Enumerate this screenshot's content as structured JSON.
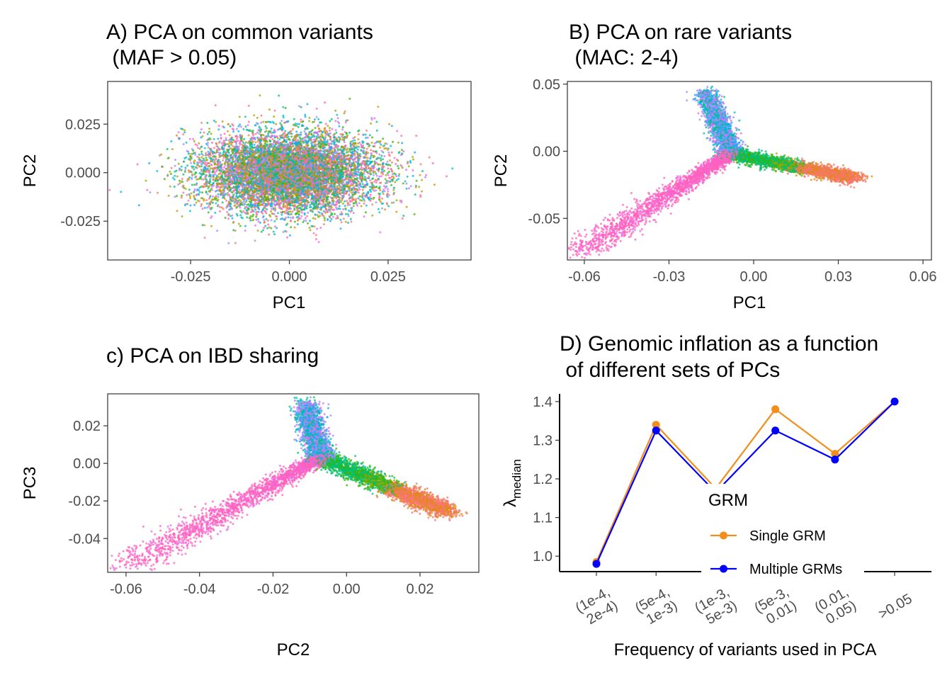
{
  "colors": {
    "single_grm": "#f28e1c",
    "multiple_grms": "#0000ff",
    "panel_border": "#333333",
    "tick_text": "#4d4d4d",
    "population_palette": [
      "#f8766d",
      "#d89000",
      "#a3a500",
      "#39b600",
      "#00bf7d",
      "#00bfc4",
      "#00b0f6",
      "#9590ff",
      "#e76bf3",
      "#ff62bc"
    ]
  },
  "chart_data": [
    {
      "panel": "A",
      "type": "scatter",
      "title_line1": "A) PCA on common variants",
      "title_line2": " (MAF > 0.05)",
      "xlabel": "PC1",
      "ylabel": "PC2",
      "xlim": [
        -0.046,
        0.046
      ],
      "ylim": [
        -0.045,
        0.047
      ],
      "xticks": [
        -0.025,
        0,
        0.025
      ],
      "xtick_labels": [
        "-0.025",
        "0.000",
        "0.025"
      ],
      "yticks": [
        -0.025,
        0,
        0.025
      ],
      "ytick_labels": [
        "-0.025",
        "0.000",
        "0.025"
      ],
      "point_count": 9000,
      "distribution": "isotropic cloud centred at (0, 0), sd ~0.011 (PC1) and ~0.010 (PC2)"
    },
    {
      "panel": "B",
      "type": "scatter",
      "title_line1": "B) PCA on rare variants",
      "title_line2": " (MAC: 2-4)",
      "xlabel": "PC1",
      "ylabel": "PC2",
      "xlim": [
        -0.066,
        0.063
      ],
      "ylim": [
        -0.081,
        0.052
      ],
      "xticks": [
        -0.06,
        -0.03,
        0,
        0.03,
        0.06
      ],
      "xtick_labels": [
        "-0.06",
        "-0.03",
        "0.00",
        "0.03",
        "0.06"
      ],
      "yticks": [
        -0.05,
        0,
        0.05
      ],
      "ytick_labels": [
        "-0.05",
        "0.00",
        "0.05"
      ],
      "point_count": 7000,
      "distribution": "three arms from (-0.008, -0.003): lower-left to (-0.06, -0.075), right to (0.035, -0.02), upward to (-0.018, 0.048)"
    },
    {
      "panel": "C",
      "type": "scatter",
      "title_line1": "c) PCA on IBD sharing",
      "title_line2": "",
      "xlabel": "PC2",
      "ylabel": "PC3",
      "xlim": [
        -0.065,
        0.036
      ],
      "ylim": [
        -0.058,
        0.037
      ],
      "xticks": [
        -0.06,
        -0.04,
        -0.02,
        0,
        0.02
      ],
      "xtick_labels": [
        "-0.06",
        "-0.04",
        "-0.02",
        "0.00",
        "0.02"
      ],
      "yticks": [
        -0.04,
        -0.02,
        0,
        0.02
      ],
      "ytick_labels": [
        "-0.04",
        "-0.02",
        "0.00",
        "0.02"
      ],
      "point_count": 7000,
      "distribution": "three arms from (-0.008, 0.003): lower-left to (-0.06, -0.055), right to (0.032, -0.032), upward to (-0.012, 0.033)"
    },
    {
      "panel": "D",
      "type": "line",
      "title_line1": "D) Genomic inflation as a function",
      "title_line2": " of different sets of PCs",
      "xlabel": "Frequency of variants used in PCA",
      "ylabel_main": "λ",
      "ylabel_sub": "median",
      "categories": [
        [
          "(1e-4,",
          "2e-4)"
        ],
        [
          "(5e-4,",
          "1e-3)"
        ],
        [
          "(1e-3,",
          "5e-3)"
        ],
        [
          "(5e-3,",
          "0.01)"
        ],
        [
          "(0.01,",
          "0.05)"
        ],
        [
          ">0.05"
        ]
      ],
      "yticks": [
        1.0,
        1.1,
        1.2,
        1.3,
        1.4
      ],
      "ytick_labels": [
        "1.0",
        "1.1",
        "1.2",
        "1.3",
        "1.4"
      ],
      "ylim": [
        0.96,
        1.42
      ],
      "series": [
        {
          "name": "Single GRM",
          "color": "#f28e1c",
          "values": [
            0.985,
            1.34,
            1.175,
            1.38,
            1.265,
            1.4
          ]
        },
        {
          "name": "Multiple GRMs",
          "color": "#0000ff",
          "values": [
            0.98,
            1.325,
            1.165,
            1.325,
            1.25,
            1.4
          ]
        }
      ],
      "legend_title": "GRM",
      "legend_position": "inside, lower-centre"
    }
  ]
}
